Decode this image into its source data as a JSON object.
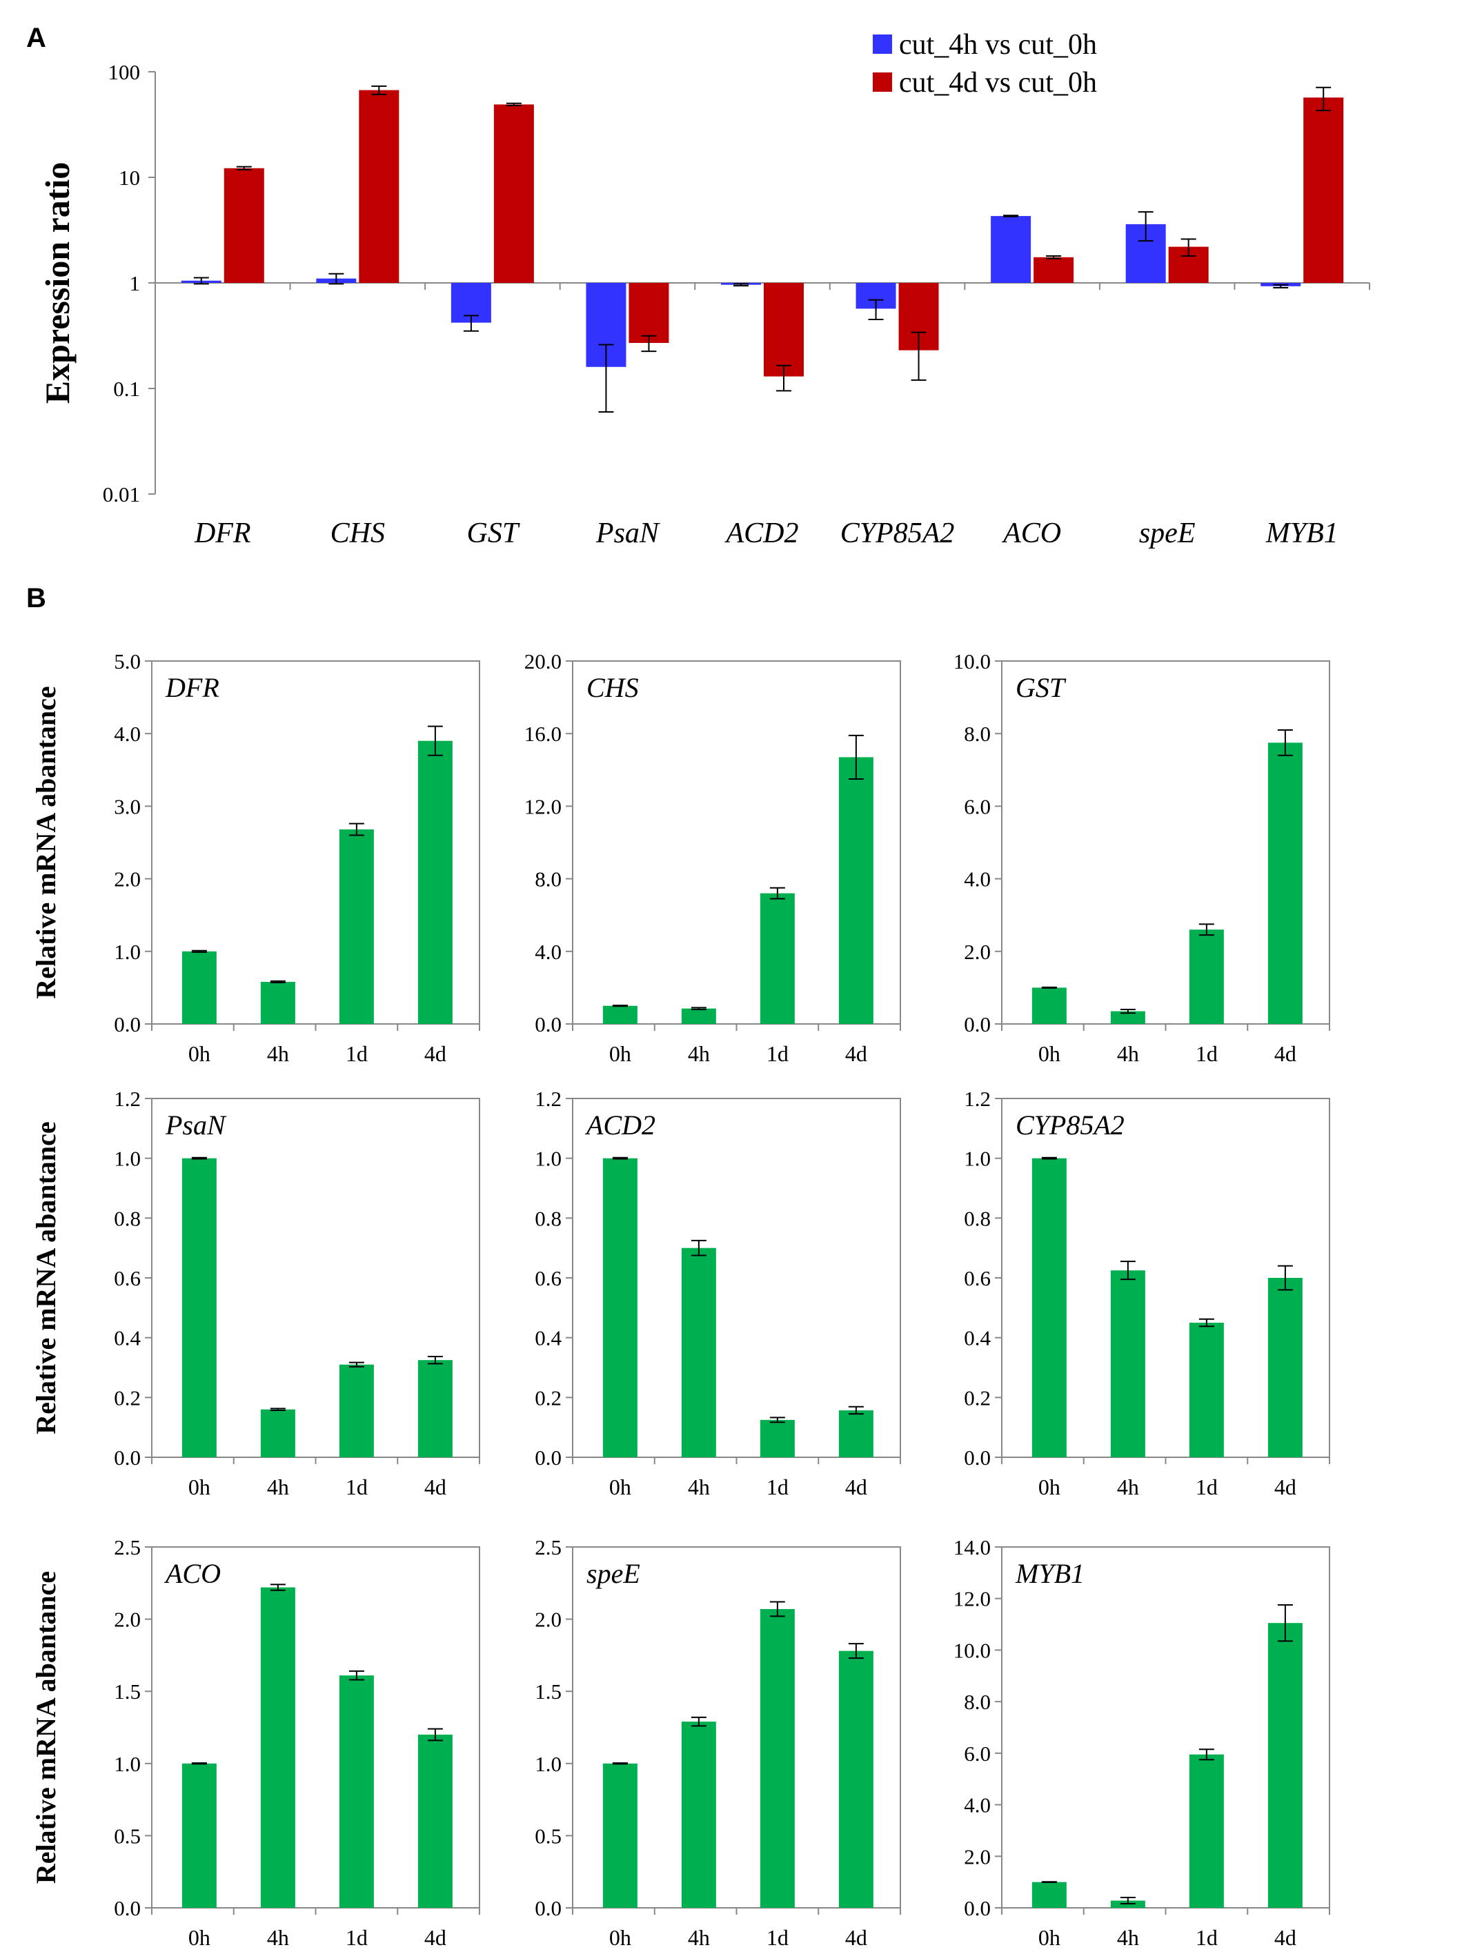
{
  "panel_labels": {
    "a": "A",
    "b": "B"
  },
  "colors": {
    "cut_4h": "#3333ff",
    "cut_4d": "#c00000",
    "green": "#00b050",
    "axis": "#888888"
  },
  "chart_data": [
    {
      "id": "A",
      "type": "bar",
      "scale": "log",
      "ylabel": "Expression ratio",
      "ylim": [
        0.01,
        100
      ],
      "yticks": [
        "0.01",
        "0.1",
        "1",
        "10",
        "100"
      ],
      "categories": [
        "DFR",
        "CHS",
        "GST",
        "PsaN",
        "ACD2",
        "CYP85A2",
        "ACO",
        "speE",
        "MYB1"
      ],
      "series": [
        {
          "name": "cut_4h vs cut_0h",
          "color": "#3333ff",
          "values": [
            1.05,
            1.1,
            0.42,
            0.16,
            0.96,
            0.57,
            4.3,
            3.6,
            0.93
          ],
          "err": [
            0.07,
            0.12,
            0.07,
            0.1,
            0.02,
            0.12,
            0.05,
            1.1,
            0.03
          ]
        },
        {
          "name": "cut_4d vs cut_0h",
          "color": "#c00000",
          "values": [
            12.2,
            67,
            49,
            0.27,
            0.13,
            0.23,
            1.75,
            2.2,
            57
          ],
          "err": [
            0.4,
            6,
            1.2,
            0.045,
            0.035,
            0.11,
            0.05,
            0.4,
            14
          ]
        }
      ]
    },
    {
      "id": "B-DFR",
      "type": "bar",
      "gene": "DFR",
      "ylabel": "Relative mRNA abantance",
      "categories": [
        "0h",
        "4h",
        "1d",
        "4d"
      ],
      "values": [
        1.0,
        0.58,
        2.68,
        3.9
      ],
      "err": [
        0.01,
        0.01,
        0.08,
        0.2
      ],
      "ylim": [
        0,
        5
      ],
      "yticks": [
        "0.0",
        "1.0",
        "2.0",
        "3.0",
        "4.0",
        "5.0"
      ]
    },
    {
      "id": "B-CHS",
      "type": "bar",
      "gene": "CHS",
      "ylabel": "",
      "categories": [
        "0h",
        "4h",
        "1d",
        "4d"
      ],
      "values": [
        1.0,
        0.85,
        7.2,
        14.7
      ],
      "err": [
        0.02,
        0.05,
        0.3,
        1.2
      ],
      "ylim": [
        0,
        20
      ],
      "yticks": [
        "0.0",
        "4.0",
        "8.0",
        "12.0",
        "16.0",
        "20.0"
      ]
    },
    {
      "id": "B-GST",
      "type": "bar",
      "gene": "GST",
      "ylabel": "",
      "categories": [
        "0h",
        "4h",
        "1d",
        "4d"
      ],
      "values": [
        1.0,
        0.35,
        2.6,
        7.75
      ],
      "err": [
        0.01,
        0.05,
        0.15,
        0.35
      ],
      "ylim": [
        0,
        10
      ],
      "yticks": [
        "0.0",
        "2.0",
        "4.0",
        "6.0",
        "8.0",
        "10.0"
      ]
    },
    {
      "id": "B-PsaN",
      "type": "bar",
      "gene": "PsaN",
      "ylabel": "Relative mRNA abantance",
      "categories": [
        "0h",
        "4h",
        "1d",
        "4d"
      ],
      "values": [
        1.0,
        0.16,
        0.31,
        0.325
      ],
      "err": [
        0.002,
        0.003,
        0.007,
        0.012
      ],
      "ylim": [
        0,
        1.2
      ],
      "yticks": [
        "0.0",
        "0.2",
        "0.4",
        "0.6",
        "0.8",
        "1.0",
        "1.2"
      ]
    },
    {
      "id": "B-ACD2",
      "type": "bar",
      "gene": "ACD2",
      "ylabel": "",
      "categories": [
        "0h",
        "4h",
        "1d",
        "4d"
      ],
      "values": [
        1.0,
        0.7,
        0.125,
        0.157
      ],
      "err": [
        0.002,
        0.025,
        0.008,
        0.012
      ],
      "ylim": [
        0,
        1.2
      ],
      "yticks": [
        "0.0",
        "0.2",
        "0.4",
        "0.6",
        "0.8",
        "1.0",
        "1.2"
      ]
    },
    {
      "id": "B-CYP85A2",
      "type": "bar",
      "gene": "CYP85A2",
      "ylabel": "",
      "categories": [
        "0h",
        "4h",
        "1d",
        "4d"
      ],
      "values": [
        1.0,
        0.625,
        0.45,
        0.6
      ],
      "err": [
        0.002,
        0.03,
        0.012,
        0.04
      ],
      "ylim": [
        0,
        1.2
      ],
      "yticks": [
        "0.0",
        "0.2",
        "0.4",
        "0.6",
        "0.8",
        "1.0",
        "1.2"
      ]
    },
    {
      "id": "B-ACO",
      "type": "bar",
      "gene": "ACO",
      "ylabel": "Relative mRNA abantance",
      "categories": [
        "0h",
        "4h",
        "1d",
        "4d"
      ],
      "values": [
        1.0,
        2.22,
        1.61,
        1.2
      ],
      "err": [
        0.003,
        0.02,
        0.03,
        0.04
      ],
      "ylim": [
        0,
        2.5
      ],
      "yticks": [
        "0.0",
        "0.5",
        "1.0",
        "1.5",
        "2.0",
        "2.5"
      ]
    },
    {
      "id": "B-speE",
      "type": "bar",
      "gene": "speE",
      "ylabel": "",
      "categories": [
        "0h",
        "4h",
        "1d",
        "4d"
      ],
      "values": [
        1.0,
        1.29,
        2.07,
        1.78
      ],
      "err": [
        0.003,
        0.03,
        0.05,
        0.05
      ],
      "ylim": [
        0,
        2.5
      ],
      "yticks": [
        "0.0",
        "0.5",
        "1.0",
        "1.5",
        "2.0",
        "2.5"
      ]
    },
    {
      "id": "B-MYB1",
      "type": "bar",
      "gene": "MYB1",
      "ylabel": "",
      "categories": [
        "0h",
        "4h",
        "1d",
        "4d"
      ],
      "values": [
        1.0,
        0.28,
        5.95,
        11.05
      ],
      "err": [
        0.01,
        0.12,
        0.2,
        0.7
      ],
      "ylim": [
        0,
        14
      ],
      "yticks": [
        "0.0",
        "2.0",
        "4.0",
        "6.0",
        "8.0",
        "10.0",
        "12.0",
        "14.0"
      ]
    }
  ]
}
